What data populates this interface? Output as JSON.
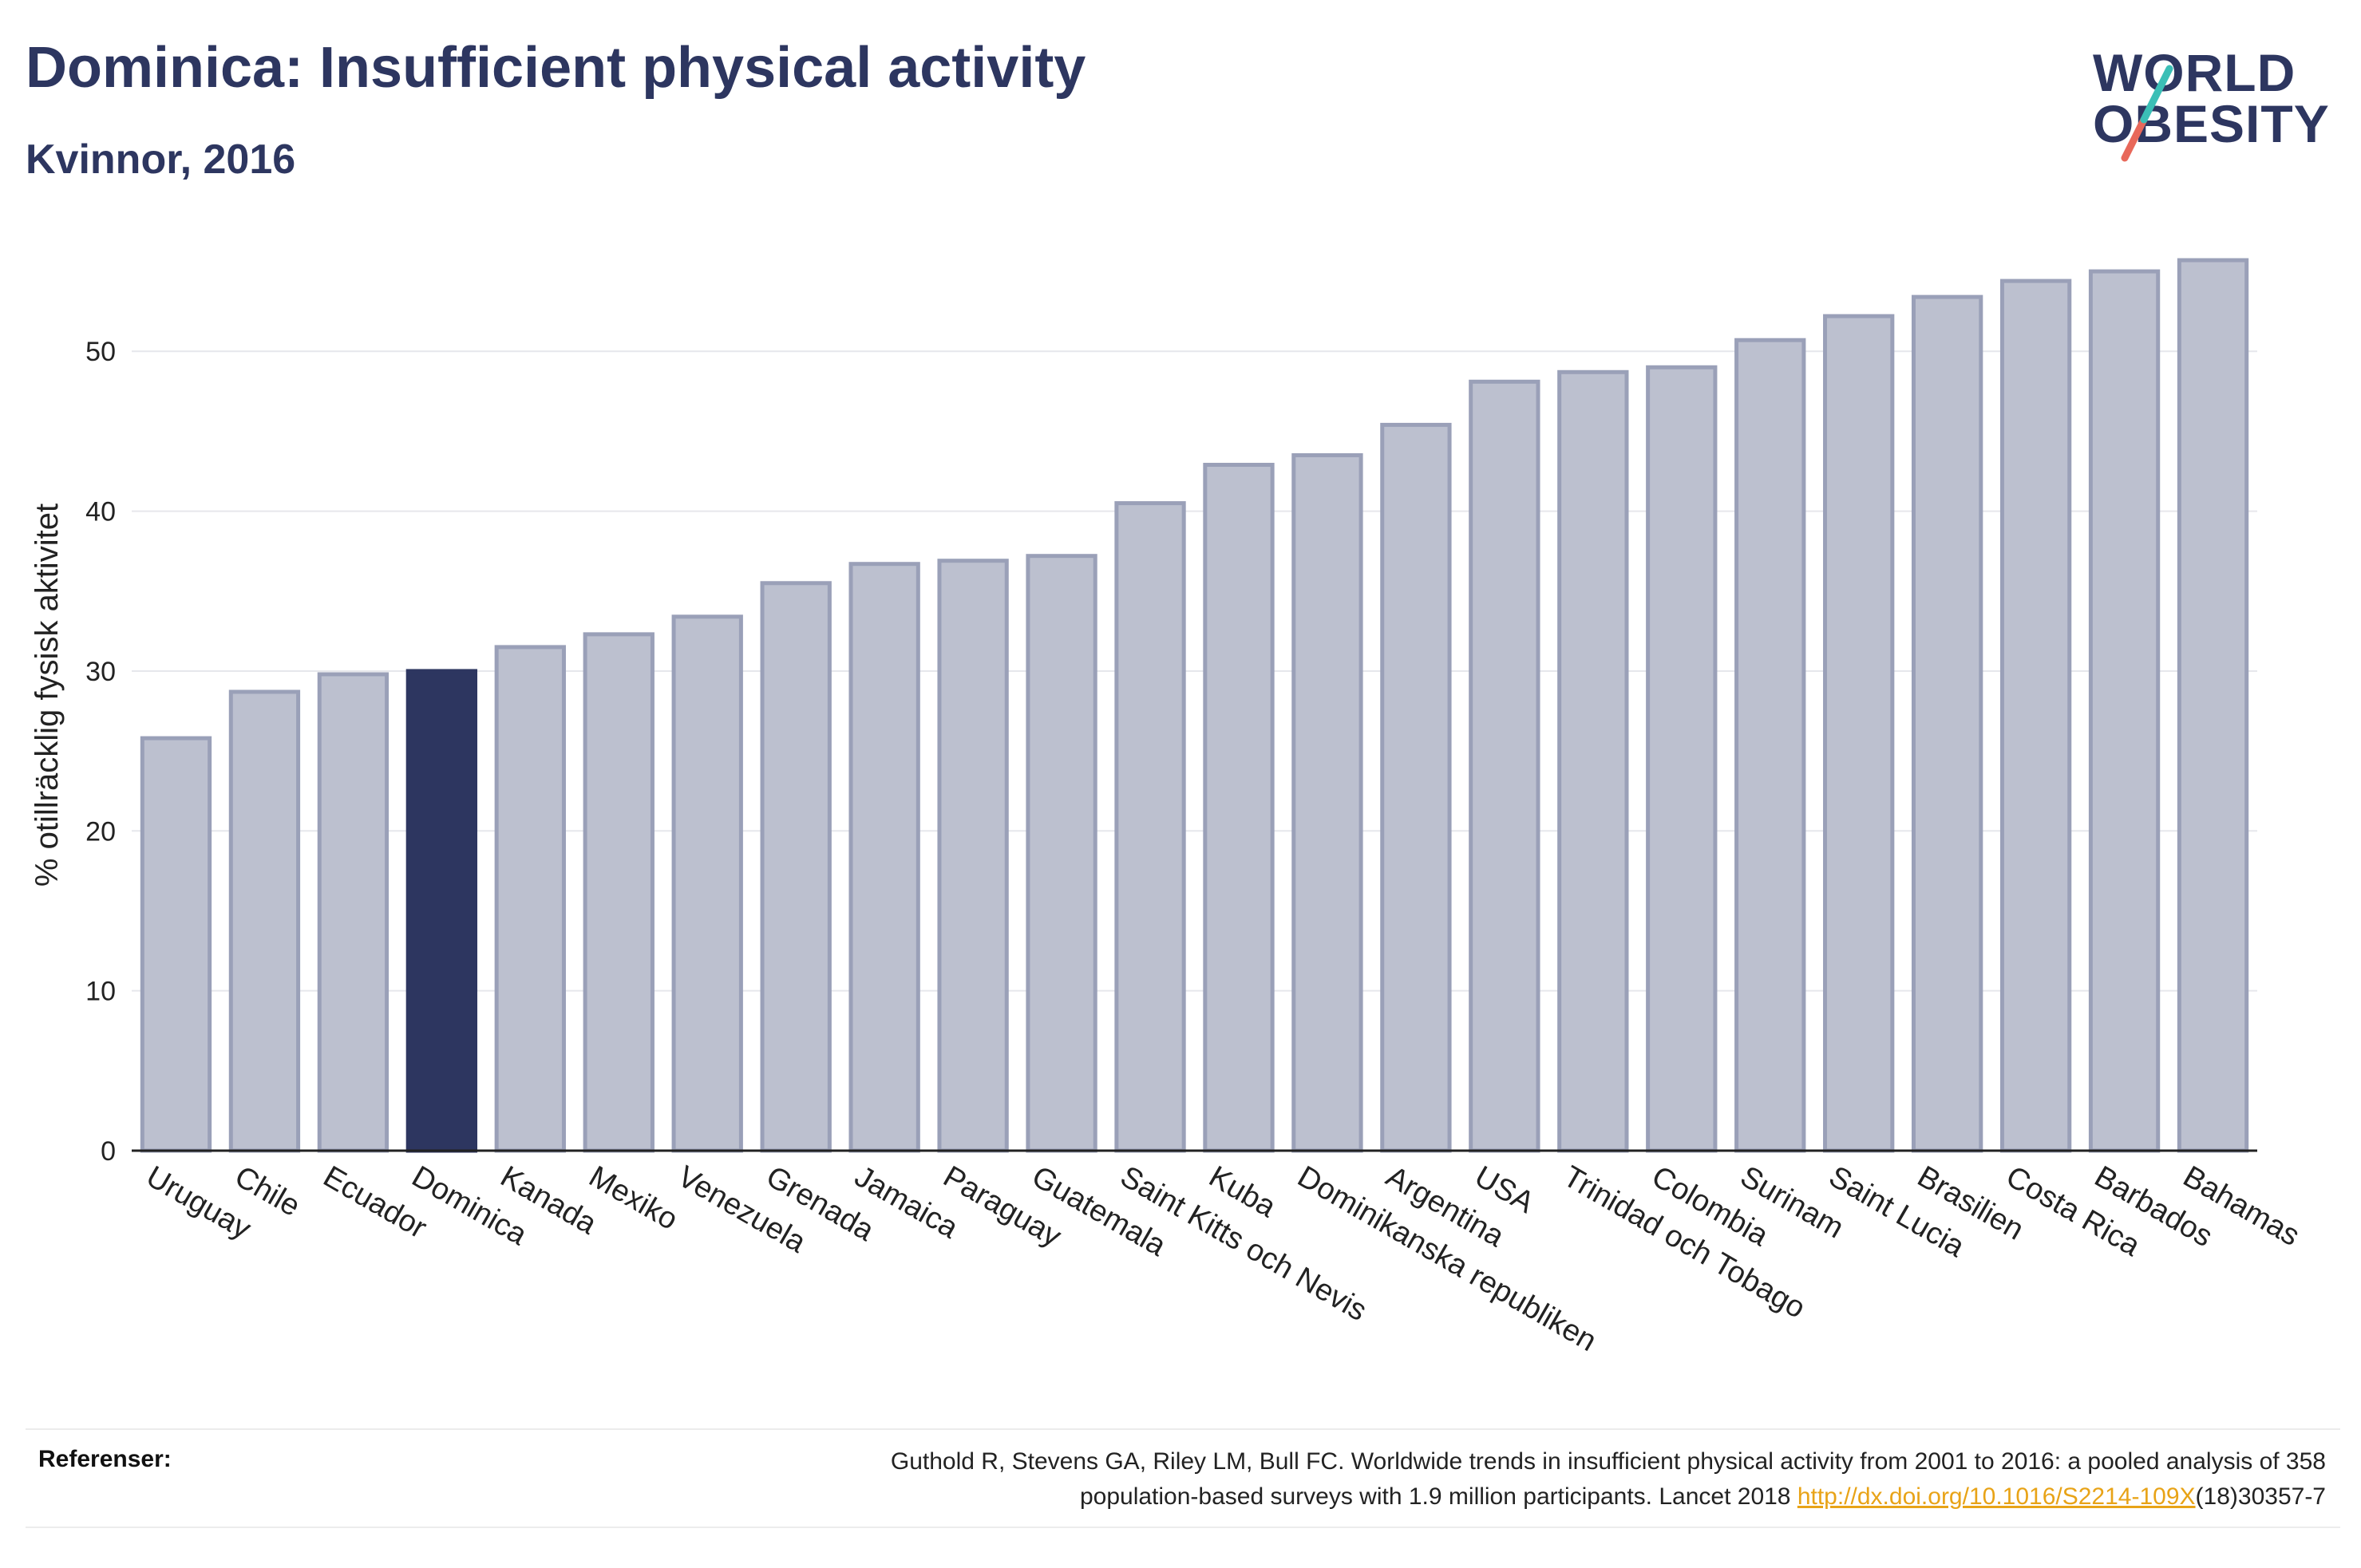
{
  "title": "Dominica: Insufficient physical activity",
  "subtitle": "Kvinnor, 2016",
  "logo": {
    "line1": "WORLD",
    "line2": "OBESITY"
  },
  "colors": {
    "primary": "#2d3660",
    "bar_default": "#bcc0cf",
    "bar_border": "#9aa0b8",
    "highlight": "#2d3660",
    "link": "#e8a317"
  },
  "chart_data": {
    "type": "bar",
    "ylabel": "% otillräcklig fysisk aktivitet",
    "xlabel": "",
    "ylim": [
      0,
      57
    ],
    "yticks": [
      0,
      10,
      20,
      30,
      40,
      50
    ],
    "grid": true,
    "highlight": "Dominica",
    "categories": [
      "Uruguay",
      "Chile",
      "Ecuador",
      "Dominica",
      "Kanada",
      "Mexiko",
      "Venezuela",
      "Grenada",
      "Jamaica",
      "Paraguay",
      "Guatemala",
      "Saint Kitts och Nevis",
      "Kuba",
      "Dominikanska republiken",
      "Argentina",
      "USA",
      "Trinidad och Tobago",
      "Colombia",
      "Surinam",
      "Saint Lucia",
      "Brasilien",
      "Costa Rica",
      "Barbados",
      "Bahamas"
    ],
    "values": [
      25.8,
      28.7,
      29.8,
      30.0,
      31.5,
      32.3,
      33.4,
      35.5,
      36.7,
      36.9,
      37.2,
      40.5,
      42.9,
      43.5,
      45.4,
      48.1,
      48.7,
      49.0,
      50.7,
      52.2,
      53.4,
      54.4,
      55.0,
      55.7
    ]
  },
  "footer": {
    "label": "Referenser:",
    "line1": "Guthold R, Stevens GA, Riley LM, Bull FC. Worldwide trends in insufficient physical activity from 2001 to 2016: a pooled analysis of 358",
    "line2_pre": "population-based surveys with 1.9 million participants. Lancet 2018 ",
    "link": "http://dx.doi.org/10.1016/S2214-109X",
    "line2_post": "(18)30357-7"
  }
}
